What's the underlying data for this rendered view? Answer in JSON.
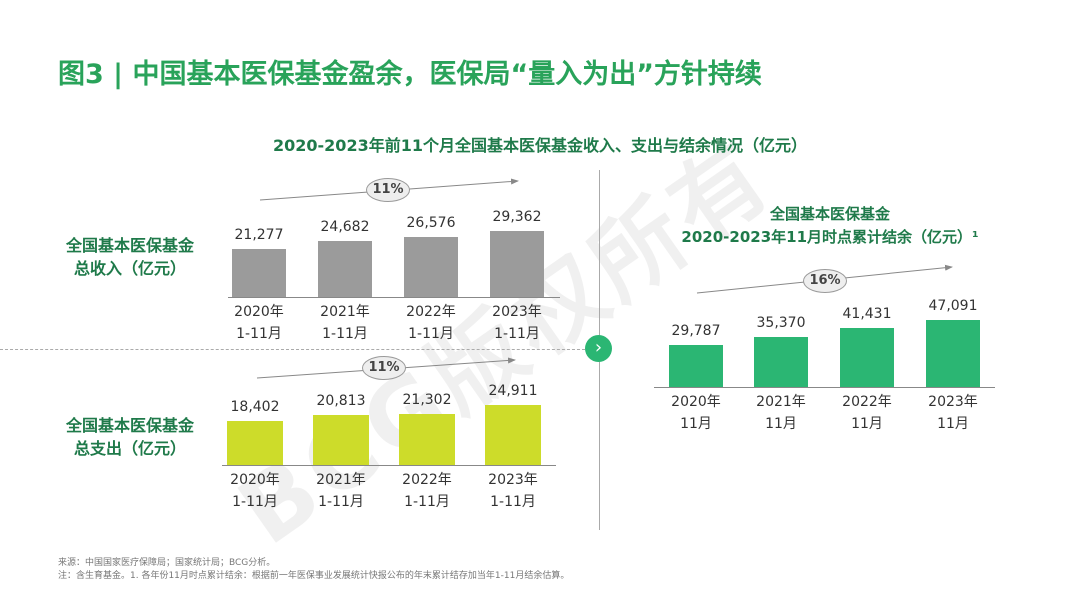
{
  "title": "图3 | 中国基本医保基金盈余，医保局“量入为出”方针持续",
  "subtitle": "2020-2023年前11个月全国基本医保基金收入、支出与结余情况（亿元）",
  "watermark": "BCG版权所有",
  "footnotes": {
    "source": "来源：中国国家医疗保障局；国家统计局；BCG分析。",
    "note": "注：含生育基金。1. 各年份11月时点累计结余：根据前一年医保事业发展统计快报公布的年末累计结存加当年1-11月结余估算。"
  },
  "chart_data": [
    {
      "type": "bar",
      "id": "income",
      "title_lines": [
        "全国基本医保基金",
        "总收入（亿元）"
      ],
      "categories": [
        [
          "2020年",
          "1-11月"
        ],
        [
          "2021年",
          "1-11月"
        ],
        [
          "2022年",
          "1-11月"
        ],
        [
          "2023年",
          "1-11月"
        ]
      ],
      "values": [
        21277,
        24682,
        26576,
        29362
      ],
      "labels": [
        "21,277",
        "24,682",
        "26,576",
        "29,362"
      ],
      "growth_label": "11%",
      "color": "#9b9b9b",
      "ylabel": "亿元"
    },
    {
      "type": "bar",
      "id": "expense",
      "title_lines": [
        "全国基本医保基金",
        "总支出（亿元）"
      ],
      "categories": [
        [
          "2020年",
          "1-11月"
        ],
        [
          "2021年",
          "1-11月"
        ],
        [
          "2022年",
          "1-11月"
        ],
        [
          "2023年",
          "1-11月"
        ]
      ],
      "values": [
        18402,
        20813,
        21302,
        24911
      ],
      "labels": [
        "18,402",
        "20,813",
        "21,302",
        "24,911"
      ],
      "growth_label": "11%",
      "color": "#cddc2a",
      "ylabel": "亿元"
    },
    {
      "type": "bar",
      "id": "balance",
      "title_lines": [
        "全国基本医保基金",
        "2020-2023年11月时点累计结余（亿元）¹"
      ],
      "categories": [
        [
          "2020年",
          "11月"
        ],
        [
          "2021年",
          "11月"
        ],
        [
          "2022年",
          "11月"
        ],
        [
          "2023年",
          "11月"
        ]
      ],
      "values": [
        29787,
        35370,
        41431,
        47091
      ],
      "labels": [
        "29,787",
        "35,370",
        "41,431",
        "47,091"
      ],
      "growth_label": "16%",
      "color": "#2bb673",
      "ylabel": "亿元"
    }
  ]
}
